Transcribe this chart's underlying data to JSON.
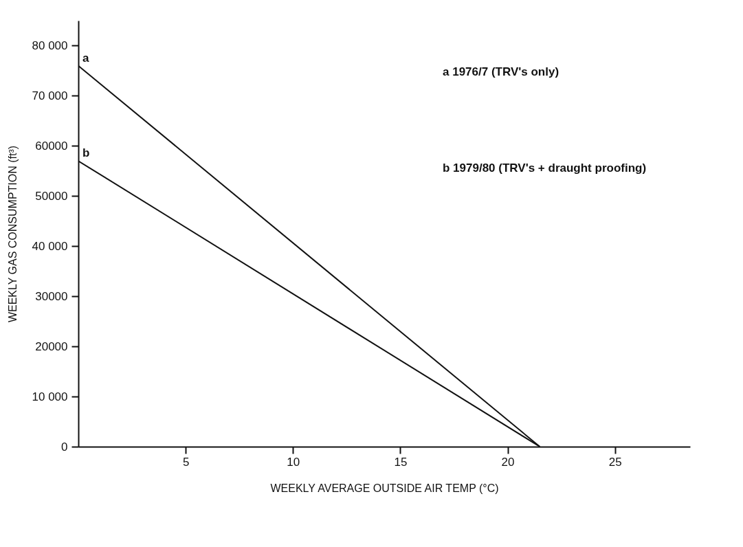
{
  "chart_data": {
    "type": "line",
    "xlabel": "WEEKLY AVERAGE OUTSIDE AIR TEMP (°C)",
    "ylabel": "WEEKLY GAS CONSUMPTION (ft³)",
    "x": [
      0,
      21.5
    ],
    "series": [
      {
        "name": "a",
        "color": "#111111",
        "values": [
          76000,
          0
        ]
      },
      {
        "name": "b",
        "color": "#111111",
        "values": [
          57000,
          0
        ]
      }
    ],
    "xlim": [
      0,
      28.5
    ],
    "xticks": [
      5,
      10,
      15,
      20,
      25
    ],
    "ylim": [
      0,
      85000
    ],
    "yticks": [
      {
        "value": 0,
        "label": "0"
      },
      {
        "value": 10000,
        "label": "10 000"
      },
      {
        "value": 20000,
        "label": "20000"
      },
      {
        "value": 30000,
        "label": "30000"
      },
      {
        "value": 40000,
        "label": "40 000"
      },
      {
        "value": 50000,
        "label": "50000"
      },
      {
        "value": 60000,
        "label": "60000"
      },
      {
        "value": 70000,
        "label": "70 000"
      },
      {
        "value": 80000,
        "label": "80 000"
      }
    ],
    "annotations": [
      "a   1976/7 (TRV's only)",
      "b   1979/80 (TRV's + draught proofing)"
    ],
    "grid": false,
    "legend": false,
    "marker": "none",
    "line_style": "solid"
  }
}
